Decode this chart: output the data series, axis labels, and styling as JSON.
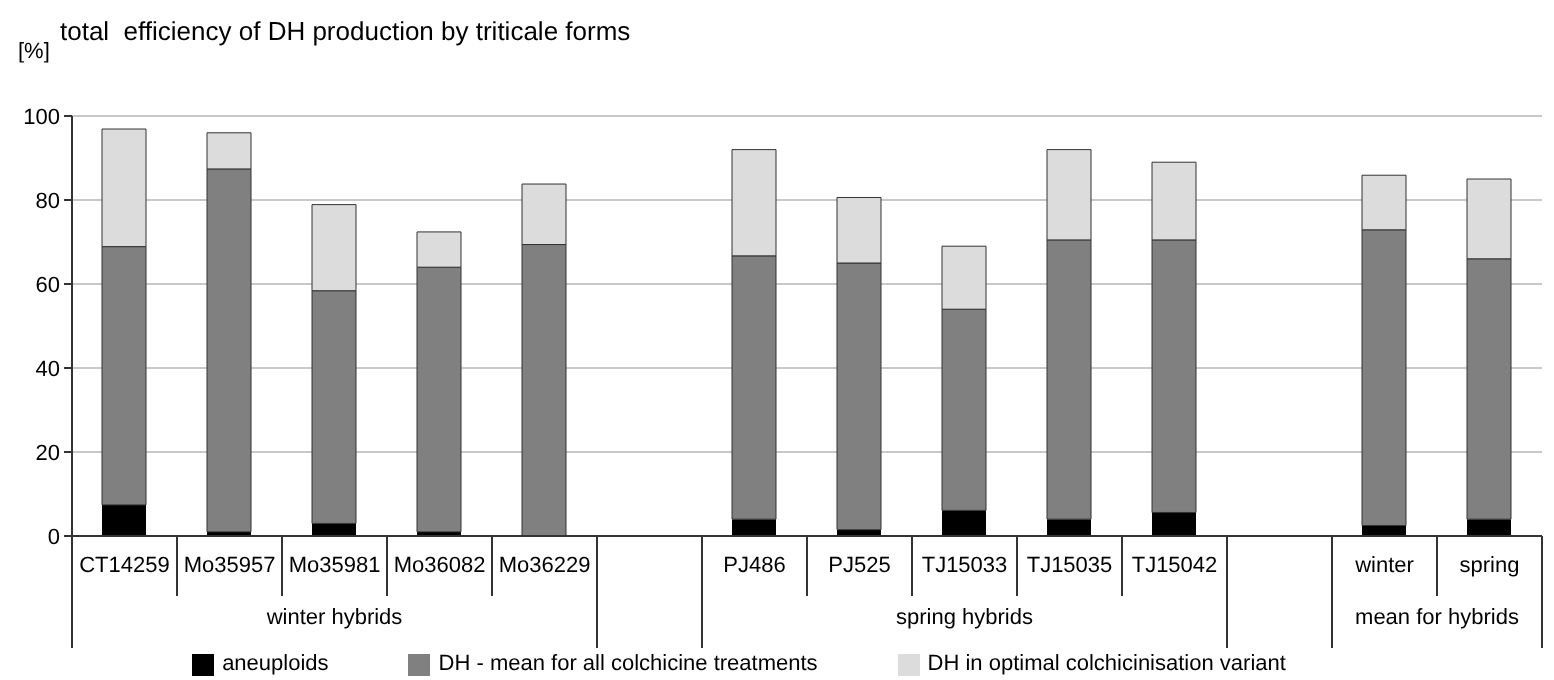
{
  "chart_data": {
    "type": "bar",
    "title": "total  efficiency of DH production by triticale forms",
    "ylabel": "[%]",
    "categories": [
      "CT14259",
      "Mo35957",
      "Mo35981",
      "Mo36082",
      "Mo36229",
      null,
      "PJ486",
      "PJ525",
      "TJ15033",
      "TJ15035",
      "TJ15042",
      null,
      "winter",
      "spring"
    ],
    "stacked": true,
    "series": [
      {
        "name": "aneuploids",
        "color": "#000000",
        "values": [
          7.4,
          1,
          3,
          1,
          0,
          null,
          4,
          1.5,
          6.1,
          4,
          5.6,
          null,
          2.5,
          4
        ]
      },
      {
        "name": "DH - mean for all colchicine treatments",
        "color": "#808080",
        "values": [
          61.5,
          86.4,
          55.4,
          63,
          69.4,
          null,
          62.7,
          63.5,
          47.9,
          66.5,
          64.9,
          null,
          70.4,
          62
        ]
      },
      {
        "name": "DH in optimal colchicinisation variant",
        "color": "#dcdcdc",
        "values": [
          28,
          8.6,
          20.5,
          8.4,
          14.4,
          null,
          25.3,
          15.6,
          15,
          21.5,
          18.5,
          null,
          13,
          19
        ]
      }
    ],
    "annotations": [
      "winter hybrids",
      "spring hybrids",
      "mean for hybrids"
    ],
    "ylim": [
      0,
      100
    ],
    "yticks": [
      0,
      20,
      40,
      60,
      80,
      100
    ],
    "grid": "y",
    "legend": "bottom"
  }
}
